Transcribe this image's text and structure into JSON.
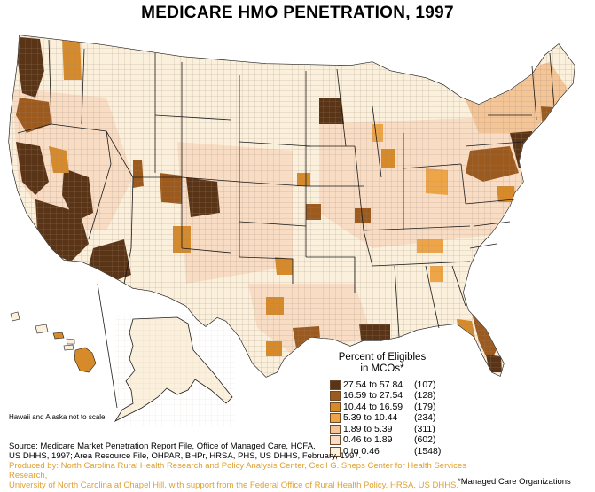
{
  "title": "MEDICARE HMO PENETRATION, 1997",
  "colors": {
    "background": "#ffffff",
    "class_1": "#5a3416",
    "class_2": "#9c5a1e",
    "class_3": "#d68a2a",
    "class_4": "#eea548",
    "class_5": "#f4c596",
    "class_6": "#f8dcc4",
    "class_7": "#fbf0dc",
    "county_lines": "#7a6a5a",
    "state_lines": "#1a1a1a",
    "producer_text": "#e0a030"
  },
  "legend": {
    "title_line1": "Percent of Eligibles",
    "title_line2": "in MCOs*",
    "classes": [
      {
        "range": "27.54 to 57.84",
        "count": "(107)",
        "color": "#5a3416"
      },
      {
        "range": "16.59 to 27.54",
        "count": "(128)",
        "color": "#9c5a1e"
      },
      {
        "range": "10.44 to 16.59",
        "count": "(179)",
        "color": "#d68a2a"
      },
      {
        "range": "5.39 to 10.44",
        "count": "(234)",
        "color": "#eea548"
      },
      {
        "range": "1.89 to 5.39",
        "count": "(311)",
        "color": "#f4c596"
      },
      {
        "range": "0.46 to 1.89",
        "count": "(602)",
        "color": "#f8dcc4"
      },
      {
        "range": "0  to 0.46",
        "count": "(1548)",
        "color": "#fbf0dc"
      }
    ]
  },
  "inset_note": "Hawaii and Alaska not to scale",
  "source": {
    "line1": "Source: Medicare Market Penetration Report File, Office of Managed Care, HCFA,",
    "line2": "US DHHS, 1997; Area Resource File, OHPAR, BHPr, HRSA, PHS, US DHHS, February, 1997.",
    "line3": "Produced by: North Carolina Rural Health Research and Policy Analysis Center, Cecil G. Sheps Center for Health Services Research,",
    "line4": "University of North Carolina at Chapel Hill, with support from the Federal Office of Rural Health Policy, HRSA, US DHHS."
  },
  "footnote": "*Managed Care Organizations"
}
